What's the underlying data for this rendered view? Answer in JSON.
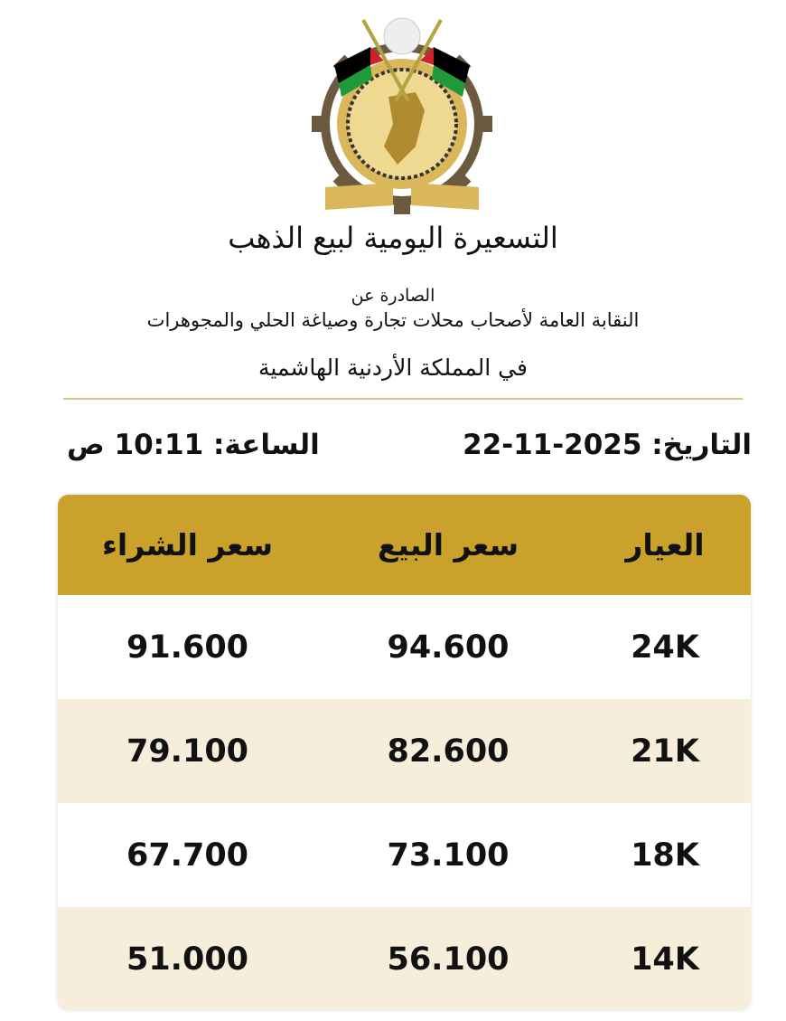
{
  "logo": {
    "alt_text": "النقابة العامة لأصحاب محلات تجارة وصياغة الحلي والمجوهرات",
    "colors": {
      "gold": "#c9a12b",
      "gear": "#6b5a3e",
      "flag_red": "#d0202a",
      "flag_green": "#1f9a3a"
    }
  },
  "header": {
    "title": "التسعيرة اليومية لبيع الذهب",
    "issued_by": "الصادرة عن",
    "organization": "النقابة العامة لأصحاب محلات تجارة وصياغة الحلي والمجوهرات",
    "country": "في المملكة الأردنية الهاشمية"
  },
  "meta": {
    "date_label": "التاريخ:",
    "date": "22-11-2025",
    "time_label": "الساعة:",
    "time": "10:11 ص"
  },
  "table": {
    "accent_color": "#c9a12b",
    "headers": [
      "العيار",
      "سعر البيع",
      "سعر الشراء"
    ],
    "rows": [
      {
        "karat": "24K",
        "sell": "94.600",
        "buy": "91.600"
      },
      {
        "karat": "21K",
        "sell": "82.600",
        "buy": "79.100"
      },
      {
        "karat": "18K",
        "sell": "73.100",
        "buy": "67.700"
      },
      {
        "karat": "14K",
        "sell": "56.100",
        "buy": "51.000"
      }
    ]
  }
}
